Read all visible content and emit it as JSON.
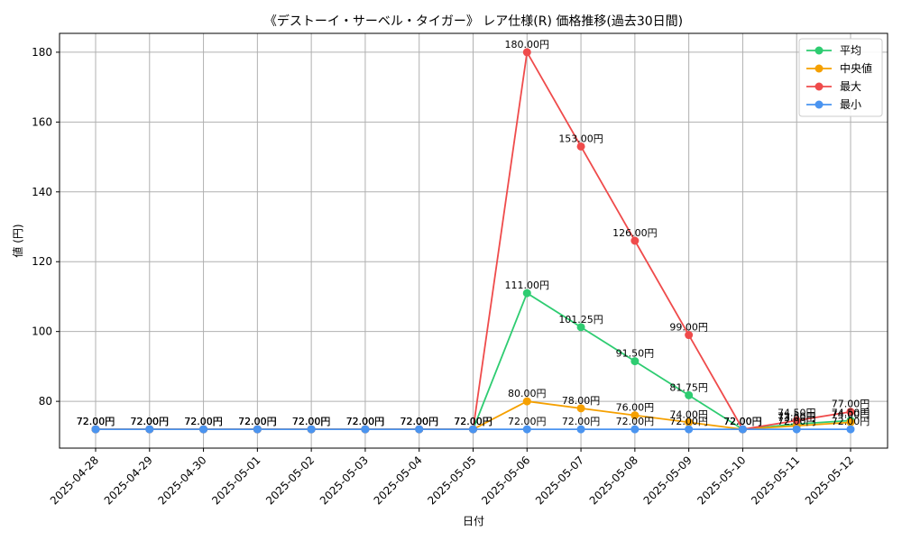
{
  "chart_data": {
    "type": "line",
    "title": "《デストーイ・サーベル・タイガー》 レア仕様(R) 価格推移(過去30日間)",
    "xlabel": "日付",
    "ylabel": "値 (円)",
    "ylim": [
      66.6,
      185.4
    ],
    "yticks": [
      80,
      100,
      120,
      140,
      160,
      180
    ],
    "grid": true,
    "legend_position": "top-right",
    "label_suffix": "円",
    "categories": [
      "2025-04-28",
      "2025-04-29",
      "2025-04-30",
      "2025-05-01",
      "2025-05-02",
      "2025-05-03",
      "2025-05-04",
      "2025-05-05",
      "2025-05-06",
      "2025-05-07",
      "2025-05-08",
      "2025-05-09",
      "2025-05-10",
      "2025-05-11",
      "2025-05-12"
    ],
    "series": [
      {
        "name": "平均",
        "color": "#2ecc71",
        "values": [
          72,
          72,
          72,
          72,
          72,
          72,
          72,
          72,
          111,
          101.25,
          91.5,
          81.75,
          72,
          73.5,
          74.5
        ]
      },
      {
        "name": "中央値",
        "color": "#f5a000",
        "values": [
          72,
          72,
          72,
          72,
          72,
          72,
          72,
          72,
          80,
          78,
          76,
          74,
          72,
          73,
          74
        ]
      },
      {
        "name": "最大",
        "color": "#ef4b4b",
        "values": [
          72,
          72,
          72,
          72,
          72,
          72,
          72,
          72,
          180,
          153,
          126,
          99,
          72,
          74.5,
          77
        ]
      },
      {
        "name": "最小",
        "color": "#4a94f0",
        "values": [
          72,
          72,
          72,
          72,
          72,
          72,
          72,
          72,
          72,
          72,
          72,
          72,
          72,
          72,
          72
        ]
      }
    ]
  }
}
